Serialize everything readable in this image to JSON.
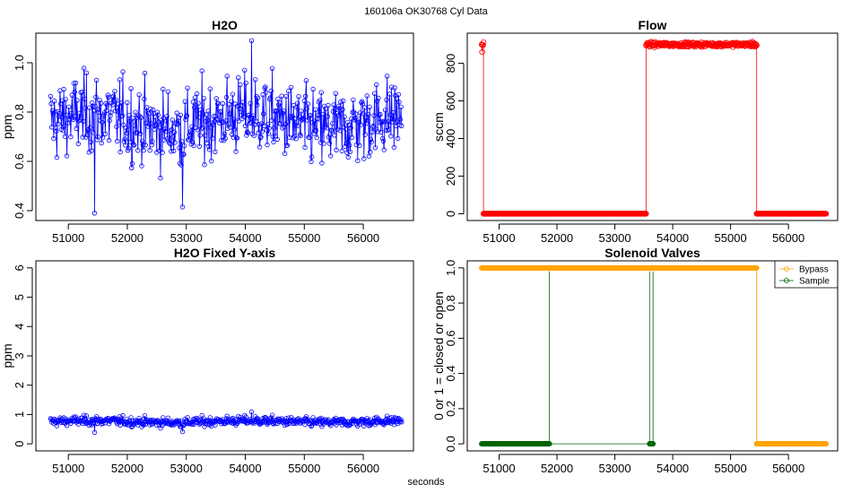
{
  "figure": {
    "suptitle": "160106a    OK30768   Cyl Data",
    "xlabel": "seconds"
  },
  "chart_data": [
    {
      "id": "h2o",
      "type": "line",
      "title": "H2O",
      "xlabel": "",
      "ylabel": "ppm",
      "xlim": [
        50450,
        56850
      ],
      "ylim": [
        0.36,
        1.12
      ],
      "xticks": [
        51000,
        52000,
        53000,
        54000,
        55000,
        56000
      ],
      "yticks": [
        0.4,
        0.6,
        0.8,
        1.0
      ],
      "ytick_labels": [
        "0.4",
        "0.6",
        "0.8",
        "1.0"
      ],
      "x_range": [
        50700,
        56650
      ],
      "n_points": 560,
      "approx_mean": 0.76,
      "approx_min": 0.39,
      "approx_max": 1.09,
      "series": [
        {
          "name": "H2O",
          "color": "#0000ff",
          "marker": "open-circle",
          "style": "line+points"
        }
      ]
    },
    {
      "id": "flow",
      "type": "line",
      "title": "Flow",
      "xlabel": "",
      "ylabel": "sccm",
      "xlim": [
        50450,
        56850
      ],
      "ylim": [
        -36,
        960
      ],
      "xticks": [
        51000,
        52000,
        53000,
        54000,
        55000,
        56000
      ],
      "yticks": [
        0,
        200,
        400,
        600,
        800
      ],
      "ytick_labels": [
        "0",
        "200",
        "400",
        "600",
        "800"
      ],
      "segments": [
        {
          "x_start": 50700,
          "x_end": 50730,
          "level": 900
        },
        {
          "x_start": 50730,
          "x_end": 53540,
          "level": 0
        },
        {
          "x_start": 53540,
          "x_end": 55450,
          "level": 900
        },
        {
          "x_start": 55450,
          "x_end": 56650,
          "level": 0
        }
      ],
      "series": [
        {
          "name": "Flow",
          "color": "#ff0000",
          "marker": "open-circle",
          "style": "line+points"
        }
      ]
    },
    {
      "id": "h2o-fixed",
      "type": "line",
      "title": "H2O Fixed Y-axis",
      "xlabel": "",
      "ylabel": "ppm",
      "xlim": [
        50450,
        56850
      ],
      "ylim": [
        -0.24,
        6.24
      ],
      "xticks": [
        51000,
        52000,
        53000,
        54000,
        55000,
        56000
      ],
      "yticks": [
        0,
        1,
        2,
        3,
        4,
        5,
        6
      ],
      "ytick_labels": [
        "0",
        "1",
        "2",
        "3",
        "4",
        "5",
        "6"
      ],
      "series": [
        {
          "name": "H2O",
          "color": "#0000ff",
          "marker": "open-circle",
          "style": "line+points"
        }
      ]
    },
    {
      "id": "valves",
      "type": "line",
      "title": "Solenoid Valves",
      "xlabel": "",
      "ylabel": "0 or 1 = closed or open",
      "xlim": [
        50450,
        56850
      ],
      "ylim": [
        -0.04,
        1.04
      ],
      "xticks": [
        51000,
        52000,
        53000,
        54000,
        55000,
        56000
      ],
      "yticks": [
        0.0,
        0.2,
        0.4,
        0.6,
        0.8,
        1.0
      ],
      "ytick_labels": [
        "0.0",
        "0.2",
        "0.4",
        "0.6",
        "0.8",
        "1.0"
      ],
      "legend": {
        "placement": "top-right",
        "entries": [
          "Bypass",
          "Sample"
        ]
      },
      "series": [
        {
          "name": "Bypass",
          "color": "#ffa500",
          "segments": [
            {
              "x_start": 50700,
              "x_end": 55450,
              "level": 1
            },
            {
              "x_start": 55450,
              "x_end": 56650,
              "level": 0
            }
          ]
        },
        {
          "name": "Sample",
          "color": "#006400",
          "segments": [
            {
              "x_start": 50700,
              "x_end": 51870,
              "level": 0
            },
            {
              "x_start": 53600,
              "x_end": 53660,
              "level": 0
            }
          ],
          "spikes": [
            51870,
            53600,
            53660
          ]
        }
      ]
    }
  ]
}
